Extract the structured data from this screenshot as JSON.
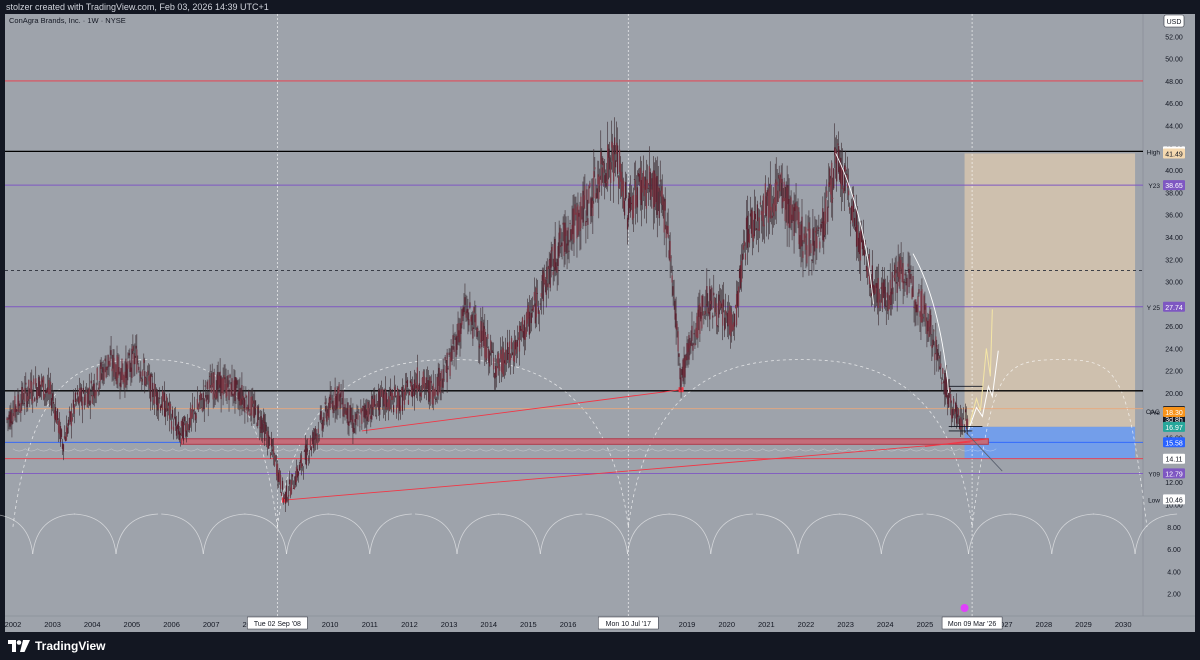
{
  "header": {
    "attribution": "stolzer created with TradingView.com, Feb 03, 2026 14:39 UTC+1"
  },
  "chart_title": "ConAgra Brands, Inc. · 1W · NYSE",
  "footer": {
    "brand": "TradingView",
    "logo_icon": "tradingview-logo-icon"
  },
  "chart_data": {
    "type": "candlestick",
    "symbol": "CAG",
    "title": "ConAgra Brands, Inc. · 1W · NYSE",
    "currency": "USD",
    "x_range": [
      2001.8,
      2030.5
    ],
    "ylim": [
      0,
      54
    ],
    "y_ticks": [
      "52.00",
      "50.00",
      "48.00",
      "46.00",
      "44.00",
      "42.00",
      "40.00",
      "38.00",
      "36.00",
      "34.00",
      "32.00",
      "30.00",
      "28.00",
      "26.00",
      "24.00",
      "22.00",
      "20.00",
      "18.00",
      "16.00",
      "14.00",
      "12.00",
      "10.00",
      "8.00",
      "6.00",
      "4.00",
      "2.00"
    ],
    "x_ticks": [
      "2002",
      "2003",
      "2004",
      "2005",
      "2006",
      "2007",
      "2008",
      "2009",
      "2010",
      "2011",
      "2012",
      "2013",
      "2014",
      "2015",
      "2016",
      "2017",
      "2018",
      "2019",
      "2020",
      "2021",
      "2022",
      "2023",
      "2024",
      "2025",
      "2026",
      "2027",
      "2028",
      "2029",
      "2030"
    ],
    "price_path": [
      [
        2001.85,
        17.6
      ],
      [
        2002.3,
        19.8
      ],
      [
        2002.7,
        20.8
      ],
      [
        2003.0,
        19.6
      ],
      [
        2003.25,
        15.5
      ],
      [
        2003.6,
        19.2
      ],
      [
        2004.0,
        20.3
      ],
      [
        2004.4,
        22.8
      ],
      [
        2004.8,
        21.6
      ],
      [
        2005.1,
        23.3
      ],
      [
        2005.5,
        20.3
      ],
      [
        2005.9,
        18.6
      ],
      [
        2006.2,
        16.3
      ],
      [
        2006.6,
        18.2
      ],
      [
        2007.0,
        20.7
      ],
      [
        2007.5,
        20.6
      ],
      [
        2007.9,
        19.3
      ],
      [
        2008.3,
        17.3
      ],
      [
        2008.6,
        14.1
      ],
      [
        2008.85,
        10.6
      ],
      [
        2009.1,
        12.2
      ],
      [
        2009.5,
        15.3
      ],
      [
        2009.9,
        18.2
      ],
      [
        2010.2,
        19.9
      ],
      [
        2010.6,
        17.1
      ],
      [
        2010.9,
        18.4
      ],
      [
        2011.3,
        19.3
      ],
      [
        2011.8,
        19.4
      ],
      [
        2012.2,
        21.1
      ],
      [
        2012.6,
        20.2
      ],
      [
        2013.0,
        22.6
      ],
      [
        2013.4,
        27.4
      ],
      [
        2013.8,
        25.3
      ],
      [
        2014.2,
        22.3
      ],
      [
        2014.6,
        23.6
      ],
      [
        2015.0,
        26.4
      ],
      [
        2015.4,
        29.7
      ],
      [
        2015.8,
        33.2
      ],
      [
        2016.2,
        35.4
      ],
      [
        2016.6,
        37.6
      ],
      [
        2016.9,
        40.4
      ],
      [
        2017.2,
        41.3
      ],
      [
        2017.5,
        36.5
      ],
      [
        2017.8,
        38.7
      ],
      [
        2018.2,
        38.2
      ],
      [
        2018.5,
        35.6
      ],
      [
        2018.85,
        21.3
      ],
      [
        2019.1,
        24.6
      ],
      [
        2019.5,
        28.4
      ],
      [
        2019.9,
        27.0
      ],
      [
        2020.2,
        26.3
      ],
      [
        2020.5,
        34.4
      ],
      [
        2020.9,
        36.6
      ],
      [
        2021.3,
        38.2
      ],
      [
        2021.7,
        35.8
      ],
      [
        2022.0,
        33.2
      ],
      [
        2022.4,
        34.6
      ],
      [
        2022.75,
        40.8
      ],
      [
        2023.0,
        38.6
      ],
      [
        2023.4,
        33.2
      ],
      [
        2023.7,
        29.5
      ],
      [
        2024.0,
        28.5
      ],
      [
        2024.4,
        31.1
      ],
      [
        2024.8,
        28.7
      ],
      [
        2025.1,
        26.4
      ],
      [
        2025.4,
        22.1
      ],
      [
        2025.7,
        18.6
      ],
      [
        2026.0,
        17.1
      ],
      [
        2026.1,
        18.38
      ]
    ],
    "horizontal_lines": [
      {
        "price": 48.0,
        "color": "#f23645"
      },
      {
        "price": 41.68,
        "color": "#000000"
      },
      {
        "price": 38.65,
        "color": "#7e57c2"
      },
      {
        "price": 31.0,
        "color": "#2a2e39",
        "style": "dashed"
      },
      {
        "price": 27.74,
        "color": "#7e57c2"
      },
      {
        "price": 20.2,
        "color": "#000000"
      },
      {
        "price": 18.6,
        "color": "#e8a87c"
      },
      {
        "price": 15.58,
        "color": "#2962ff"
      },
      {
        "price": 14.11,
        "color": "#f23645"
      },
      {
        "price": 12.79,
        "color": "#7e57c2"
      }
    ],
    "price_labels": [
      {
        "name": "High",
        "value": "41.68",
        "color": "#ffffff",
        "text_color": "#131722"
      },
      {
        "name": "",
        "value": "41.49",
        "color": "#f5d9b0",
        "text_color": "#131722"
      },
      {
        "name": "Y23",
        "value": "38.65",
        "color": "#7e57c2",
        "text_color": "#ffffff"
      },
      {
        "name": "Y 25",
        "value": "27.74",
        "color": "#7e57c2",
        "text_color": "#ffffff"
      },
      {
        "name": "CAG",
        "value": "18.38",
        "color": "#131722",
        "text_color": "#ffffff"
      },
      {
        "name": "",
        "value": "3d 8h",
        "color": "#131722",
        "text_color": "#ffffff"
      },
      {
        "name": "Pre",
        "value": "18.30",
        "color": "#f7931a",
        "text_color": "#ffffff"
      },
      {
        "name": "",
        "value": "16.97",
        "color": "#26a69a",
        "text_color": "#ffffff"
      },
      {
        "name": "",
        "value": "15.58",
        "color": "#2962ff",
        "text_color": "#ffffff"
      },
      {
        "name": "",
        "value": "14.11",
        "color": "#ffffff",
        "text_color": "#131722"
      },
      {
        "name": "Y09",
        "value": "12.79",
        "color": "#7e57c2",
        "text_color": "#ffffff"
      },
      {
        "name": "Low",
        "value": "10.46",
        "color": "#ffffff",
        "text_color": "#131722"
      }
    ],
    "time_markers": [
      {
        "label": "Tue 02 Sep '08",
        "date": 2008.67
      },
      {
        "label": "Mon 10 Jul '17",
        "date": 2017.52
      },
      {
        "label": "Mon 09 Mar '26",
        "date": 2026.19
      }
    ],
    "cycle_arcs_large": [
      2008.67,
      2017.52,
      2026.19
    ],
    "support_zone": {
      "top": 15.9,
      "bottom": 15.4,
      "from": 2006.25,
      "to": 2026.6
    },
    "trendlines": [
      {
        "from": [
          2008.85,
          10.4
        ],
        "to": [
          2026.15,
          15.6
        ],
        "color": "#f23645"
      },
      {
        "from": [
          2010.8,
          16.6
        ],
        "to": [
          2018.85,
          20.3
        ],
        "color": "#f23645"
      },
      {
        "from": [
          2025.0,
          15.2
        ],
        "to": [
          2026.6,
          15.9
        ],
        "color": "#f23645"
      },
      {
        "from": [
          2026.0,
          16.6
        ],
        "to": [
          2026.95,
          13.0
        ],
        "color": "#5b6270"
      }
    ],
    "long_position": {
      "from": 2026.0,
      "to": 2030.3,
      "entry": 16.97,
      "target": 41.49,
      "stop": 14.11,
      "profit_color": "#f5d9b0",
      "loss_color": "#6b9ef5"
    },
    "hollow_arcs_small": [
      2002.5,
      2004.6,
      2006.8,
      2008.9,
      2011.0,
      2013.2,
      2015.3,
      2017.5,
      2019.6,
      2021.8,
      2023.9,
      2026.1,
      2028.2,
      2030.3
    ],
    "projection_paths": [
      {
        "color": "#f5e6a6",
        "points": [
          [
            2026.1,
            16.9
          ],
          [
            2026.3,
            19.5
          ],
          [
            2026.4,
            18.4
          ],
          [
            2026.55,
            24.0
          ],
          [
            2026.65,
            21.5
          ],
          [
            2026.7,
            27.5
          ]
        ]
      },
      {
        "color": "#ffffff",
        "points": [
          [
            2026.1,
            16.7
          ],
          [
            2026.3,
            18.7
          ],
          [
            2026.45,
            17.9
          ],
          [
            2026.6,
            20.6
          ],
          [
            2026.7,
            19.7
          ],
          [
            2026.85,
            23.8
          ]
        ]
      }
    ],
    "grid": false,
    "event_icon": {
      "name": "dividend-event-icon",
      "date": 2026.0
    }
  }
}
